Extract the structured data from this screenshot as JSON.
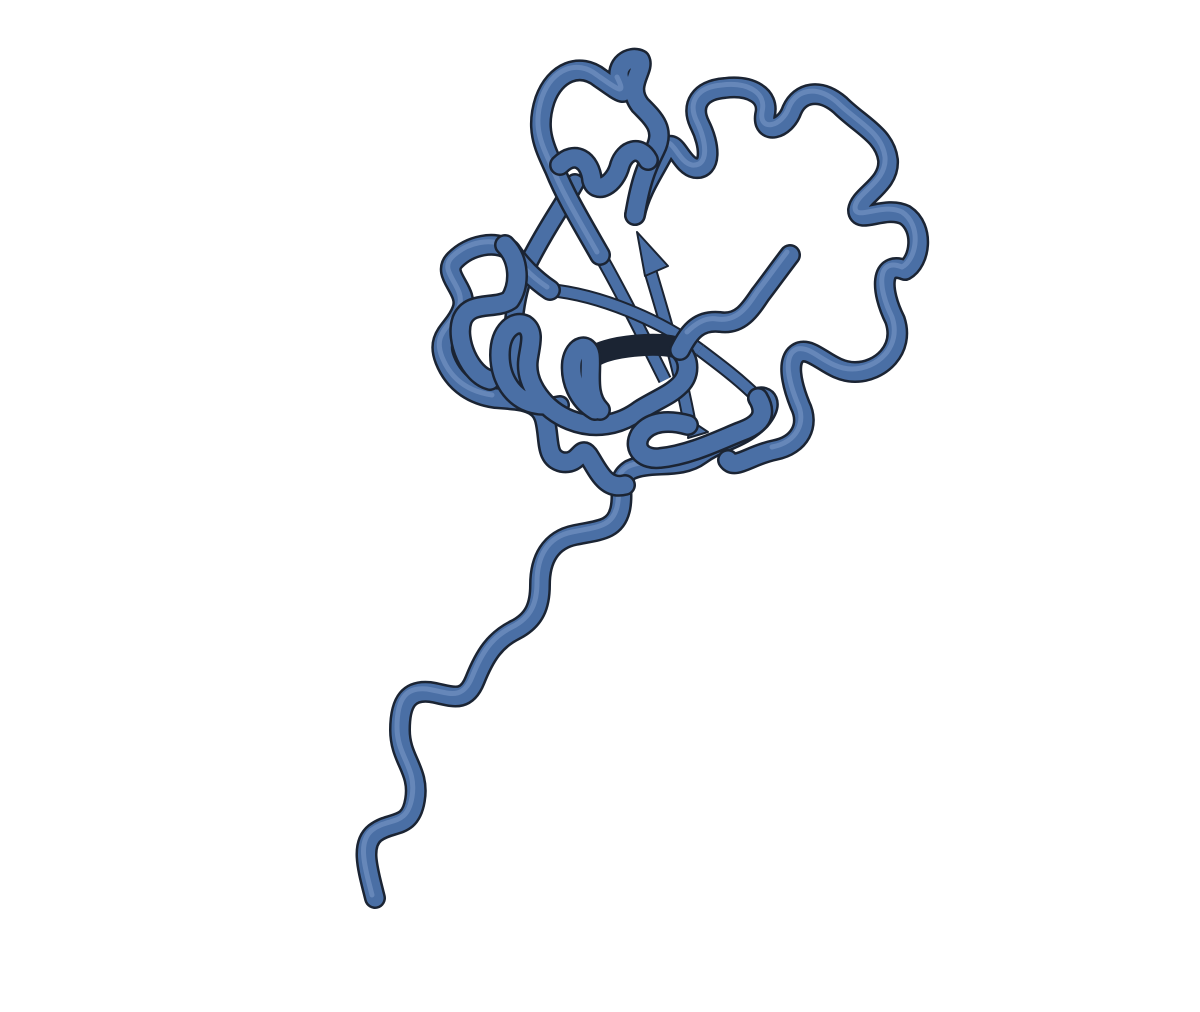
{
  "scene": {
    "subject": "protein-cartoon",
    "representation": "tube-and-strand",
    "colors": {
      "background": "#ffffff",
      "tube": "#4a6fa5",
      "tube_highlight": "#7d9acb",
      "outline": "#1b2433"
    }
  }
}
